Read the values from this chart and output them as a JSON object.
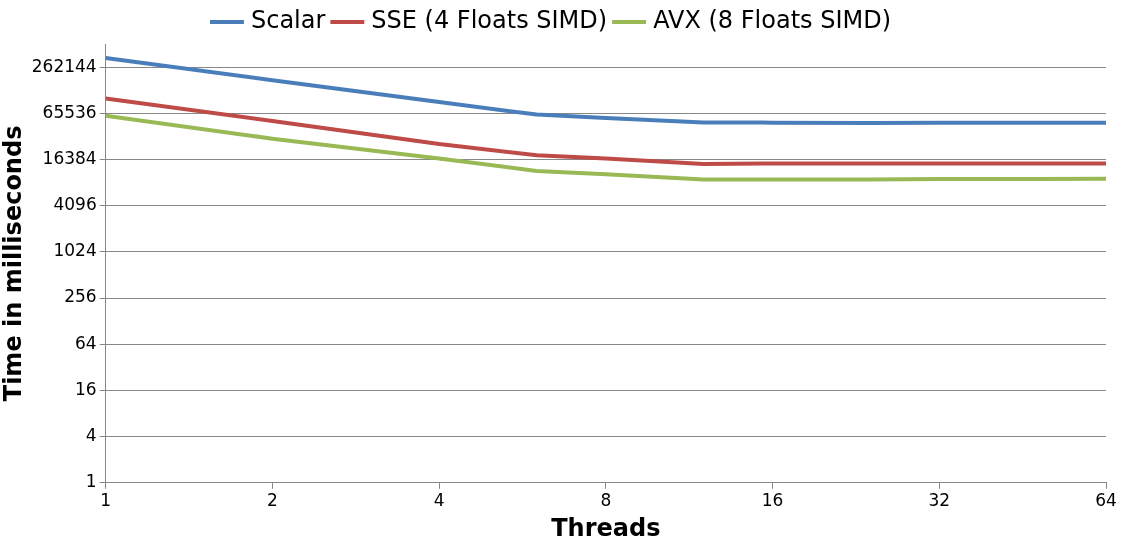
{
  "chart_data": {
    "type": "line",
    "xlabel": "Threads",
    "ylabel": "Time in milliseconds",
    "log": "xy",
    "grid": "y",
    "legend": "top",
    "marker": "none",
    "line_style": "solid",
    "xlim": [
      1,
      64
    ],
    "xticks": [
      1,
      2,
      4,
      8,
      16,
      32,
      64
    ],
    "ylim": [
      1,
      524288
    ],
    "yticks": [
      1,
      4,
      16,
      64,
      256,
      1024,
      4096,
      16384,
      65536,
      262144
    ],
    "series": [
      {
        "name": "Scalar",
        "color": "#4a7ebb",
        "x": [
          1,
          2,
          4,
          6,
          8,
          12,
          16,
          24,
          32,
          48,
          64
        ],
        "values": [
          345000,
          177000,
          92000,
          63000,
          57000,
          49700,
          49500,
          49000,
          49500,
          49500,
          49500
        ]
      },
      {
        "name": "SSE (4 Floats SIMD)",
        "color": "#be4b48",
        "x": [
          1,
          2,
          4,
          6,
          8,
          12,
          16,
          24,
          32,
          48,
          64
        ],
        "values": [
          102000,
          52000,
          26000,
          18600,
          16900,
          14300,
          14500,
          14500,
          14500,
          14500,
          14500
        ]
      },
      {
        "name": "AVX (8 Floats SIMD)",
        "color": "#98b954",
        "x": [
          1,
          2,
          4,
          6,
          8,
          12,
          16,
          24,
          32,
          48,
          64
        ],
        "values": [
          61000,
          30600,
          16900,
          11600,
          10500,
          9000,
          9000,
          9000,
          9100,
          9100,
          9200
        ]
      }
    ]
  }
}
